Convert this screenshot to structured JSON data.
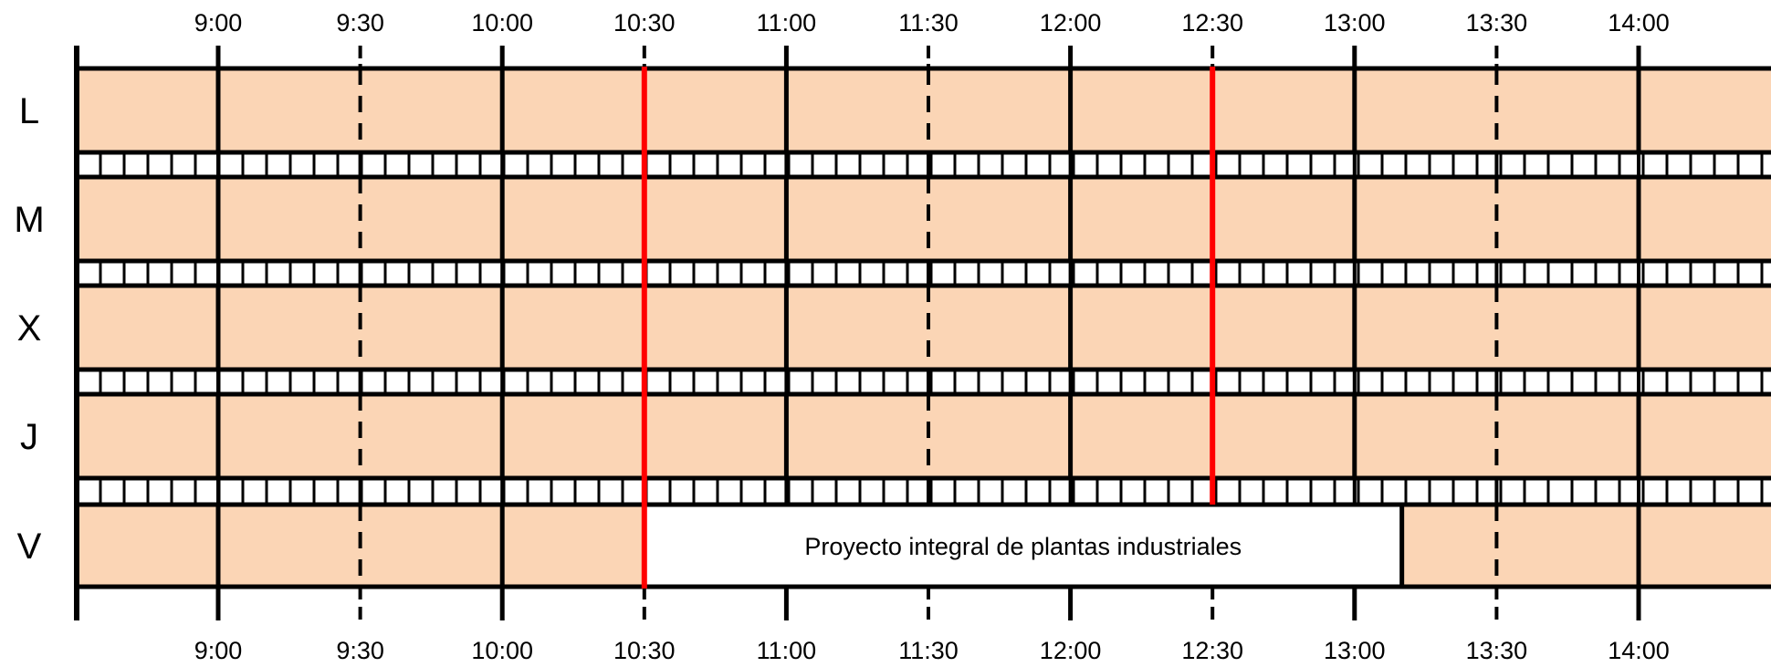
{
  "schedule": {
    "time_labels": [
      "9:00",
      "9:30",
      "10:00",
      "10:30",
      "11:00",
      "11:30",
      "12:00",
      "12:30",
      "13:00",
      "13:30",
      "14:00"
    ],
    "day_labels": [
      "L",
      "M",
      "X",
      "J",
      "V"
    ],
    "event": {
      "label": "Proyecto  integral de  plantas industriales",
      "day": "V",
      "start": "10:30",
      "end": "13:10"
    },
    "highlight_times": [
      "10:30",
      "12:30"
    ],
    "colors": {
      "cell_fill": "#FBD5B5",
      "grid_line": "#000000",
      "highlight_line": "#FF0000",
      "event_fill": "#FFFFFF",
      "page_bg": "#FFFFFF"
    }
  }
}
